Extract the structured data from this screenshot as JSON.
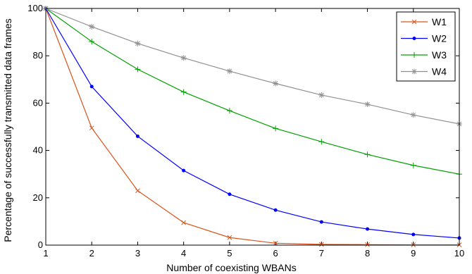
{
  "chart_data": {
    "type": "line",
    "xlabel": "Number of coexisting WBANs",
    "ylabel": "Percentage of successfully transmitted data frames",
    "x": [
      1,
      2,
      3,
      4,
      5,
      6,
      7,
      8,
      9,
      10
    ],
    "xlim": [
      1,
      10
    ],
    "ylim": [
      0,
      100
    ],
    "xticks": [
      "1",
      "2",
      "3",
      "4",
      "5",
      "6",
      "7",
      "8",
      "9",
      "10"
    ],
    "yticks": [
      "0",
      "20",
      "40",
      "60",
      "80",
      "100"
    ],
    "grid": false,
    "legend_position": "top-right",
    "series": [
      {
        "name": "W1",
        "color": "#d95319",
        "marker": "x",
        "values": [
          100,
          49.5,
          23,
          9.5,
          3.2,
          0.8,
          0.3,
          0.2,
          0.1,
          0.1
        ]
      },
      {
        "name": "W2",
        "color": "#0000ff",
        "marker": "dot",
        "values": [
          100,
          67,
          46,
          31.5,
          21.5,
          14.8,
          9.8,
          6.8,
          4.5,
          3
        ]
      },
      {
        "name": "W3",
        "color": "#00a000",
        "marker": "plus",
        "values": [
          100,
          86,
          74.3,
          64.7,
          56.8,
          49.3,
          43.7,
          38.3,
          33.7,
          30
        ]
      },
      {
        "name": "W4",
        "color": "#909090",
        "marker": "star",
        "values": [
          100,
          92.3,
          85.2,
          79.1,
          73.5,
          68.3,
          63.4,
          59.5,
          55,
          51.2
        ]
      }
    ]
  }
}
